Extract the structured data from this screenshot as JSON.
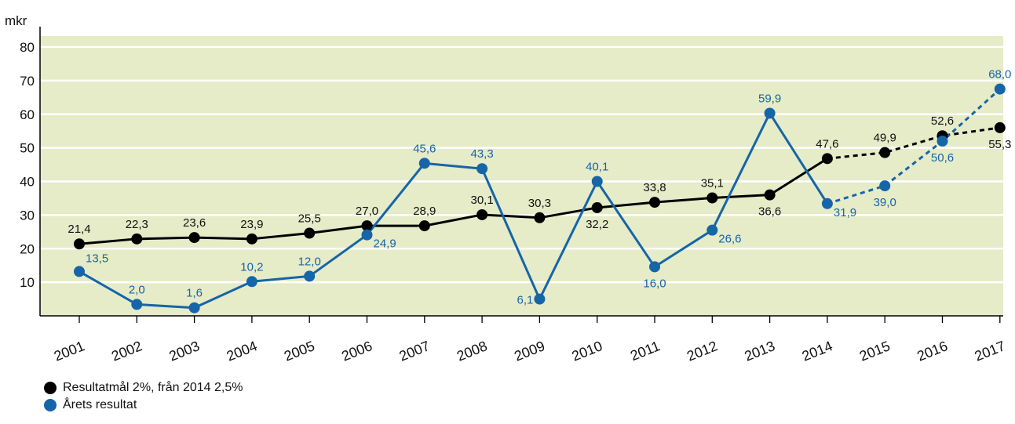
{
  "chart_data": {
    "type": "line",
    "ylabel": "mkr",
    "ylim": [
      0,
      80
    ],
    "yticks": [
      10,
      20,
      30,
      40,
      50,
      60,
      70,
      80
    ],
    "x": [
      "2001",
      "2002",
      "2003",
      "2004",
      "2005",
      "2006",
      "2007",
      "2008",
      "2009",
      "2010",
      "2011",
      "2012",
      "2013",
      "2014",
      "2015",
      "2016",
      "2017"
    ],
    "x_ticks_rotated": true,
    "plot_background": "#e6ebc8",
    "grid": "horizontal",
    "forecast_from": "2014",
    "series": [
      {
        "name": "Resultatmål 2%, från 2014 2,5%",
        "color": "#000000",
        "values": [
          21.4,
          22.3,
          23.6,
          23.9,
          25.5,
          27.0,
          28.9,
          30.1,
          30.3,
          32.2,
          33.8,
          35.1,
          36.6,
          47.6,
          49.9,
          52.6,
          55.3
        ],
        "plot_values": [
          21.4,
          22.9,
          23.3,
          22.9,
          24.6,
          26.8,
          26.8,
          30.1,
          29.2,
          32.2,
          33.8,
          35.1,
          36.0,
          46.8,
          48.6,
          53.6,
          56.0
        ],
        "labels": [
          "21,4",
          "22,3",
          "23,6",
          "23,9",
          "25,5",
          "27,0",
          "28,9",
          "30,1",
          "30,3",
          "32,2",
          "33,8",
          "35,1",
          "36,6",
          "47,6",
          "49,9",
          "52,6",
          "55,3"
        ],
        "label_pos": [
          "above",
          "above",
          "above",
          "above",
          "above",
          "above",
          "above",
          "above",
          "above",
          "below",
          "above",
          "above",
          "below",
          "above",
          "above",
          "above",
          "below"
        ]
      },
      {
        "name": "Årets resultat",
        "color": "#1565a8",
        "values": [
          13.5,
          2.0,
          1.6,
          10.2,
          12.0,
          24.9,
          45.6,
          43.3,
          6.1,
          40.1,
          16.0,
          26.6,
          59.9,
          31.9,
          39.0,
          50.6,
          68.0
        ],
        "plot_values": [
          13.2,
          3.4,
          2.4,
          10.2,
          11.8,
          24.1,
          45.4,
          43.8,
          5.0,
          40.0,
          14.6,
          25.5,
          60.3,
          33.4,
          38.7,
          52.0,
          67.5
        ],
        "labels": [
          "13,5",
          "2,0",
          "1,6",
          "10,2",
          "12,0",
          "24,9",
          "45,6",
          "43,3",
          "6,1",
          "40,1",
          "16,0",
          "26,6",
          "59,9",
          "31,9",
          "39,0",
          "50,6",
          "68,0"
        ],
        "label_pos": [
          "above-right",
          "above",
          "above",
          "above",
          "above",
          "below-right",
          "above",
          "above",
          "below-left",
          "above",
          "below",
          "below-right",
          "above",
          "below-right",
          "below",
          "below",
          "above"
        ]
      }
    ],
    "legend": {
      "position": "bottom-left",
      "items": [
        {
          "label": "Resultatmål 2%, från 2014 2,5%",
          "color": "#000000"
        },
        {
          "label": "Årets resultat",
          "color": "#1565a8"
        }
      ]
    }
  }
}
